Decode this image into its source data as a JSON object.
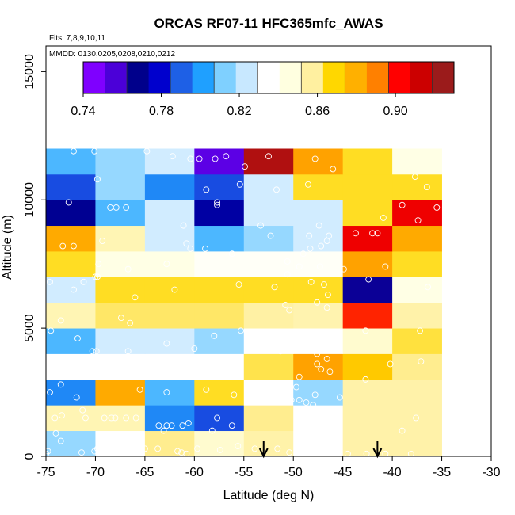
{
  "chart_data": {
    "type": "heatmap",
    "title": "ORCAS RF07-11 HFC365mfc_AWAS",
    "flights_note": "Flts: 7,8,9,10,11",
    "dates_note": "MMDD: 0130,0205,0208,0210,0212",
    "xlabel": "Latitude (deg N)",
    "ylabel": "Altitude (m)",
    "xlim": [
      -75,
      -30
    ],
    "ylim": [
      0,
      16000
    ],
    "x_ticks": [
      -75,
      -70,
      -65,
      -60,
      -55,
      -50,
      -45,
      -40,
      -35,
      -30
    ],
    "x_tick_labels": [
      "-75",
      "-70",
      "-65",
      "-60",
      "-55",
      "-50",
      "-45",
      "-40",
      "-35",
      "-30"
    ],
    "y_ticks": [
      0,
      5000,
      10000,
      15000
    ],
    "y_tick_labels": [
      "0",
      "5000",
      "10000",
      "15000"
    ],
    "colorbar": {
      "min": 0.74,
      "max": 0.93,
      "ticks": [
        0.74,
        0.78,
        0.82,
        0.86,
        0.9
      ],
      "tick_labels": [
        "0.74",
        "0.78",
        "0.82",
        "0.86",
        "0.90"
      ],
      "colors": [
        "#7f00ff",
        "#4b00d8",
        "#00008b",
        "#0000cd",
        "#1e60e6",
        "#1fa0ff",
        "#7fd0ff",
        "#c8e8ff",
        "#ffffff",
        "#ffffe0",
        "#fff0a0",
        "#ffd700",
        "#ffb000",
        "#ff8000",
        "#ff0000",
        "#cc0000",
        "#9b1b1b"
      ]
    },
    "x_edges": [
      -75,
      -70,
      -65,
      -60,
      -55,
      -50,
      -45,
      -40,
      -35
    ],
    "y_edges": [
      0,
      1000,
      2000,
      3000,
      4000,
      5000,
      6000,
      7000,
      8000,
      9000,
      10000,
      11000,
      12000
    ],
    "cells": [
      [
        0.815,
        0.835,
        0.86,
        0.85,
        0.857,
        0.835,
        0.857,
        0.857
      ],
      [
        0.855,
        0.855,
        0.795,
        0.785,
        0.86,
        0.835,
        0.857,
        0.857
      ],
      [
        0.795,
        0.884,
        0.805,
        0.868,
        0.835,
        0.815,
        0.857,
        0.857
      ],
      [
        0.835,
        0.835,
        0.835,
        0.835,
        0.865,
        0.886,
        0.875,
        0.86
      ],
      [
        0.805,
        0.825,
        0.825,
        0.815,
        0.835,
        0.835,
        0.85,
        0.866
      ],
      [
        0.855,
        0.863,
        0.863,
        0.863,
        0.858,
        0.856,
        0.903,
        0.857
      ],
      [
        0.825,
        0.868,
        0.868,
        0.868,
        0.868,
        0.868,
        0.762,
        0.845
      ],
      [
        0.868,
        0.845,
        0.845,
        0.838,
        0.838,
        0.838,
        0.886,
        0.868
      ],
      [
        0.884,
        0.855,
        0.825,
        0.805,
        0.815,
        0.825,
        0.91,
        0.884
      ],
      [
        0.765,
        0.805,
        0.825,
        0.768,
        0.825,
        0.825,
        0.868,
        0.91
      ],
      [
        0.785,
        0.815,
        0.795,
        0.785,
        0.825,
        0.868,
        0.868,
        0.868
      ],
      [
        0.805,
        0.815,
        0.825,
        0.748,
        0.925,
        0.886,
        0.868,
        0.845
      ]
    ],
    "samples": [
      [
        -72.2,
        11900
      ],
      [
        -70.1,
        11900
      ],
      [
        -64.8,
        11900
      ],
      [
        -62.2,
        11700
      ],
      [
        -60.4,
        11600
      ],
      [
        -59.5,
        11600
      ],
      [
        -57.9,
        11600
      ],
      [
        -56.8,
        11700
      ],
      [
        -54.9,
        11300
      ],
      [
        -52.5,
        11700
      ],
      [
        -47.8,
        11600
      ],
      [
        -46.0,
        11200
      ],
      [
        -37.7,
        10900
      ],
      [
        -69.8,
        10800
      ],
      [
        -58.8,
        10400
      ],
      [
        -55.4,
        10600
      ],
      [
        -51.7,
        10400
      ],
      [
        -48.5,
        10600
      ],
      [
        -36.5,
        10500
      ],
      [
        -72.7,
        9900
      ],
      [
        -57.7,
        9900
      ],
      [
        -68.5,
        9700
      ],
      [
        -67.9,
        9700
      ],
      [
        -66.9,
        9700
      ],
      [
        -57.7,
        9800
      ],
      [
        -39.0,
        9800
      ],
      [
        -35.5,
        9700
      ],
      [
        -40.9,
        9300
      ],
      [
        -37.4,
        9200
      ],
      [
        -53.3,
        9000
      ],
      [
        -47.4,
        9000
      ],
      [
        -61.1,
        9000
      ],
      [
        -46.4,
        8600
      ],
      [
        -48.4,
        8600
      ],
      [
        -52.3,
        8600
      ],
      [
        -43.7,
        8700
      ],
      [
        -42.0,
        8700
      ],
      [
        -41.5,
        8700
      ],
      [
        -46.6,
        8400
      ],
      [
        -47.2,
        8200
      ],
      [
        -48.3,
        8100
      ],
      [
        -49.0,
        7900
      ],
      [
        -72.2,
        8200
      ],
      [
        -73.3,
        8200
      ],
      [
        -69.3,
        8400
      ],
      [
        -60.8,
        8300
      ],
      [
        -60.4,
        8100
      ],
      [
        -58.9,
        8100
      ],
      [
        -56.2,
        7900
      ],
      [
        -50.6,
        7600
      ],
      [
        -49.4,
        7400
      ],
      [
        -47.3,
        7400
      ],
      [
        -44.9,
        7300
      ],
      [
        -40.7,
        7400
      ],
      [
        -69.7,
        7500
      ],
      [
        -66.7,
        7300
      ],
      [
        -62.8,
        7500
      ],
      [
        -50.6,
        7100
      ],
      [
        -74.6,
        6800
      ],
      [
        -71.2,
        6800
      ],
      [
        -70.0,
        7000
      ],
      [
        -69.8,
        7000
      ],
      [
        -36.4,
        6600
      ],
      [
        -42.4,
        6900
      ],
      [
        -72.2,
        6500
      ],
      [
        -62.0,
        6500
      ],
      [
        -55.5,
        6700
      ],
      [
        -51.9,
        6600
      ],
      [
        -48.2,
        6800
      ],
      [
        -46.9,
        6700
      ],
      [
        -66.0,
        6200
      ],
      [
        -46.5,
        6300
      ],
      [
        -47.6,
        6000
      ],
      [
        -46.6,
        5800
      ],
      [
        -50.8,
        5900
      ],
      [
        -50.4,
        5700
      ],
      [
        -67.4,
        5400
      ],
      [
        -73.5,
        5300
      ],
      [
        -66.5,
        5200
      ],
      [
        -55.3,
        4900
      ],
      [
        -42.7,
        4900
      ],
      [
        -37.2,
        4900
      ],
      [
        -74.5,
        4900
      ],
      [
        -71.8,
        4600
      ],
      [
        -70.3,
        4100
      ],
      [
        -69.9,
        4100
      ],
      [
        -66.7,
        4100
      ],
      [
        -62.8,
        4400
      ],
      [
        -60.0,
        4200
      ],
      [
        -58.0,
        4700
      ],
      [
        -49.9,
        4300
      ],
      [
        -51.3,
        4100
      ],
      [
        -47.6,
        4000
      ],
      [
        -46.6,
        3800
      ],
      [
        -47.6,
        3600
      ],
      [
        -47.2,
        3400
      ],
      [
        -40.2,
        3600
      ],
      [
        -37.1,
        3700
      ],
      [
        -71.0,
        3300
      ],
      [
        -56.9,
        3200
      ],
      [
        -60.1,
        3400
      ],
      [
        -49.4,
        3100
      ],
      [
        -46.3,
        3300
      ],
      [
        -42.7,
        3000
      ],
      [
        -74.6,
        2500
      ],
      [
        -73.5,
        2800
      ],
      [
        -71.9,
        2300
      ],
      [
        -65.5,
        2600
      ],
      [
        -62.8,
        2500
      ],
      [
        -58.8,
        2600
      ],
      [
        -56.0,
        2400
      ],
      [
        -53.9,
        2700
      ],
      [
        -53.3,
        2400
      ],
      [
        -50.4,
        2600
      ],
      [
        -49.7,
        2700
      ],
      [
        -49.4,
        2200
      ],
      [
        -48.7,
        2100
      ],
      [
        -48.0,
        2000
      ],
      [
        -47.8,
        2400
      ],
      [
        -50.2,
        2200
      ],
      [
        -45.3,
        2300
      ],
      [
        -73.4,
        1600
      ],
      [
        -71.3,
        1800
      ],
      [
        -68.4,
        1500
      ],
      [
        -71.0,
        1500
      ],
      [
        -69.1,
        1500
      ],
      [
        -68.0,
        1500
      ],
      [
        -66.9,
        1500
      ],
      [
        -65.9,
        1500
      ],
      [
        -63.6,
        1200
      ],
      [
        -62.3,
        1200
      ],
      [
        -61.2,
        1200
      ],
      [
        -60.6,
        1300
      ],
      [
        -57.7,
        1500
      ],
      [
        -56.2,
        1200
      ],
      [
        -49.6,
        1500
      ],
      [
        -48.7,
        1500
      ],
      [
        -48.1,
        1500
      ],
      [
        -47.1,
        1500
      ],
      [
        -46.7,
        1500
      ],
      [
        -37.6,
        1500
      ],
      [
        -62.8,
        1200
      ],
      [
        -58.2,
        1000
      ],
      [
        -63.1,
        1000
      ],
      [
        -74.1,
        1500
      ],
      [
        -74.0,
        900
      ],
      [
        -73.5,
        600
      ],
      [
        -39.0,
        1000
      ],
      [
        -69.8,
        300
      ],
      [
        -68.1,
        500
      ],
      [
        -65.0,
        300
      ],
      [
        -63.7,
        300
      ],
      [
        -61.7,
        200
      ],
      [
        -60.8,
        100
      ],
      [
        -59.7,
        300
      ],
      [
        -55.6,
        400
      ],
      [
        -53.9,
        300
      ],
      [
        -51.6,
        300
      ],
      [
        -48.4,
        100
      ],
      [
        -47.0,
        100
      ],
      [
        -45.9,
        100
      ],
      [
        -44.5,
        100
      ],
      [
        -42.6,
        100
      ],
      [
        -40.7,
        100
      ],
      [
        -38.1,
        100
      ],
      [
        -75.0,
        100
      ],
      [
        -74.8,
        200
      ],
      [
        -71.4,
        150
      ],
      [
        -70.1,
        200
      ],
      [
        -66.8,
        150
      ],
      [
        -61.3,
        150
      ],
      [
        -57.4,
        250
      ],
      [
        -50.4,
        150
      ]
    ],
    "arrows_at_latitude": [
      -53.0,
      -41.5
    ]
  }
}
